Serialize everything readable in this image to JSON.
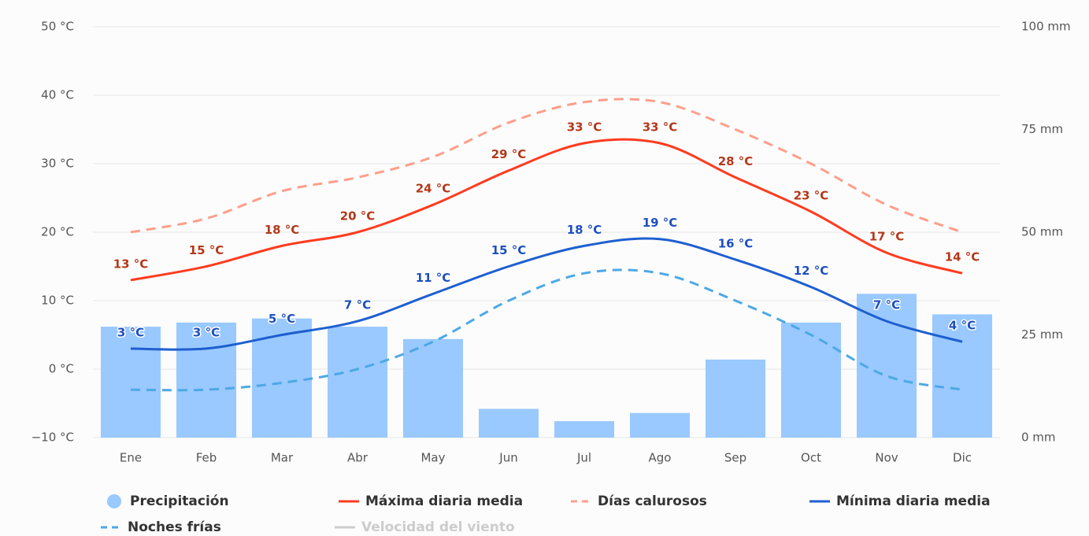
{
  "chart_data": {
    "type": "combo",
    "categories": [
      "Ene",
      "Feb",
      "Mar",
      "Abr",
      "May",
      "Jun",
      "Jul",
      "Ago",
      "Sep",
      "Oct",
      "Nov",
      "Dic"
    ],
    "ylim": [
      -10,
      50
    ],
    "yticks": [
      {
        "value": -10,
        "label": "−10 °C"
      },
      {
        "value": 0,
        "label": "0 °C"
      },
      {
        "value": 10,
        "label": "10 °C"
      },
      {
        "value": 20,
        "label": "20 °C"
      },
      {
        "value": 30,
        "label": "30 °C"
      },
      {
        "value": 40,
        "label": "40 °C"
      },
      {
        "value": 50,
        "label": "50 °C"
      }
    ],
    "y2lim": [
      0,
      100
    ],
    "y2ticks": [
      {
        "value": 0,
        "label": "0 mm"
      },
      {
        "value": 25,
        "label": "25 mm"
      },
      {
        "value": 50,
        "label": "50 mm"
      },
      {
        "value": 75,
        "label": "75 mm"
      },
      {
        "value": 100,
        "label": "100 mm"
      }
    ],
    "grid": true,
    "series": [
      {
        "name": "Precipitación",
        "type": "bar",
        "axis": "y2",
        "color": "#99c9ff",
        "values": [
          27,
          28,
          29,
          27,
          24,
          7,
          4,
          6,
          19,
          28,
          35,
          30
        ]
      },
      {
        "name": "Máxima diaria media",
        "type": "line",
        "color": "#ff3b1f",
        "label_color": "#b3381a",
        "values": [
          13,
          15,
          18,
          20,
          24,
          29,
          33,
          33,
          28,
          23,
          17,
          14
        ],
        "value_labels": [
          "13 °C",
          "15 °C",
          "18 °C",
          "20 °C",
          "24 °C",
          "29 °C",
          "33 °C",
          "33 °C",
          "28 °C",
          "23 °C",
          "17 °C",
          "14 °C"
        ]
      },
      {
        "name": "Días calurosos",
        "type": "line",
        "dashed": true,
        "color": "#ff9e8a",
        "values": [
          20,
          22,
          26,
          28,
          31,
          36,
          39,
          39,
          35,
          30,
          24,
          20
        ]
      },
      {
        "name": "Mínima diaria media",
        "type": "line",
        "color": "#1e5fd0",
        "label_color": "#1e4fc0",
        "values": [
          3,
          3,
          5,
          7,
          11,
          15,
          18,
          19,
          16,
          12,
          7,
          4
        ],
        "value_labels": [
          "3 °C",
          "3 °C",
          "5 °C",
          "7 °C",
          "11 °C",
          "15 °C",
          "18 °C",
          "19 °C",
          "16 °C",
          "12 °C",
          "7 °C",
          "4 °C"
        ]
      },
      {
        "name": "Noches frías",
        "type": "line",
        "dashed": true,
        "color": "#4da8e6",
        "values": [
          -3,
          -3,
          -2,
          0,
          4,
          10,
          14,
          14,
          10,
          5,
          -1,
          -3
        ]
      },
      {
        "name": "Velocidad del viento",
        "type": "line",
        "hidden": true,
        "color": "#cccccc"
      }
    ]
  }
}
